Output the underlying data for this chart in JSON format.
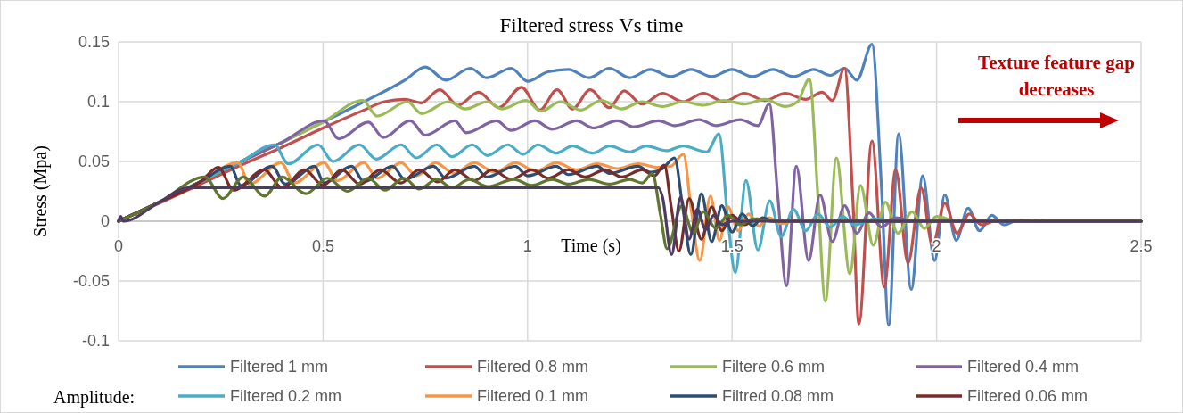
{
  "chart_data": {
    "type": "line",
    "title": "Filtered stress Vs time",
    "xlabel": "Time (s)",
    "ylabel": "Stress (Mpa)",
    "legend_title": "Amplitude:",
    "annotations": [
      "Texture feature gap decreases"
    ],
    "xlim": [
      0,
      2.5
    ],
    "xticks": [
      0,
      0.5,
      1,
      1.5,
      2,
      2.5
    ],
    "ylim": [
      -0.1,
      0.15
    ],
    "yticks": [
      -0.1,
      -0.05,
      0,
      0.05,
      0.1,
      0.15
    ],
    "grid": true,
    "legend": "bottom",
    "series": [
      {
        "name": "Filtered 1 mm",
        "color": "#4f81bd",
        "x": [
          0,
          0.1,
          0.2,
          0.3,
          0.4,
          0.5,
          0.6,
          0.7,
          0.75,
          0.8,
          0.86,
          0.9,
          0.96,
          1.0,
          1.05,
          1.1,
          1.15,
          1.2,
          1.25,
          1.3,
          1.35,
          1.4,
          1.45,
          1.5,
          1.55,
          1.6,
          1.65,
          1.7,
          1.74,
          1.775,
          1.805,
          1.842,
          1.865,
          1.883,
          1.907,
          1.938,
          1.966,
          1.995,
          2.02,
          2.048,
          2.077,
          2.105,
          2.135,
          2.165,
          2.2,
          2.3,
          2.5
        ],
        "values": [
          0,
          0.016,
          0.033,
          0.05,
          0.066,
          0.083,
          0.1,
          0.118,
          0.129,
          0.118,
          0.128,
          0.12,
          0.128,
          0.117,
          0.125,
          0.127,
          0.12,
          0.128,
          0.12,
          0.127,
          0.121,
          0.127,
          0.121,
          0.127,
          0.121,
          0.127,
          0.121,
          0.127,
          0.122,
          0.128,
          0.118,
          0.148,
          0.03,
          -0.087,
          0.073,
          -0.057,
          0.038,
          -0.033,
          0.022,
          -0.016,
          0.011,
          -0.008,
          0.005,
          -0.003,
          0.001,
          0,
          0
        ]
      },
      {
        "name": "Filtered 0.8 mm",
        "color": "#c0504d",
        "x": [
          0,
          0.1,
          0.2,
          0.3,
          0.4,
          0.5,
          0.6,
          0.65,
          0.7,
          0.74,
          0.785,
          0.83,
          0.88,
          0.93,
          0.985,
          1.03,
          1.072,
          1.11,
          1.153,
          1.2,
          1.236,
          1.28,
          1.33,
          1.38,
          1.43,
          1.48,
          1.53,
          1.58,
          1.63,
          1.68,
          1.72,
          1.745,
          1.775,
          1.795,
          1.81,
          1.842,
          1.872,
          1.9,
          1.93,
          1.962,
          1.99,
          2.02,
          2.05,
          2.08,
          2.11,
          2.15,
          2.3,
          2.5
        ],
        "values": [
          0,
          0.015,
          0.031,
          0.047,
          0.062,
          0.078,
          0.093,
          0.1,
          0.102,
          0.099,
          0.11,
          0.097,
          0.108,
          0.095,
          0.112,
          0.093,
          0.11,
          0.094,
          0.11,
          0.095,
          0.109,
          0.098,
          0.107,
          0.1,
          0.107,
          0.1,
          0.107,
          0.101,
          0.107,
          0.102,
          0.108,
          0.101,
          0.128,
          0.02,
          -0.086,
          0.067,
          -0.055,
          0.043,
          -0.035,
          0.028,
          -0.02,
          0.015,
          -0.01,
          0.006,
          -0.003,
          0.001,
          0,
          0
        ]
      },
      {
        "name": "Filtere 0.6 mm",
        "color": "#9bbb59",
        "x": [
          0,
          0.1,
          0.2,
          0.3,
          0.4,
          0.5,
          0.597,
          0.632,
          0.706,
          0.741,
          0.806,
          0.848,
          0.902,
          0.937,
          0.996,
          1.033,
          1.08,
          1.13,
          1.18,
          1.23,
          1.28,
          1.33,
          1.38,
          1.43,
          1.48,
          1.53,
          1.58,
          1.63,
          1.66,
          1.689,
          1.71,
          1.728,
          1.755,
          1.788,
          1.814,
          1.845,
          1.875,
          1.905,
          1.94,
          1.97,
          2.0,
          2.05,
          2.3,
          2.5
        ],
        "values": [
          0,
          0.016,
          0.033,
          0.05,
          0.066,
          0.083,
          0.101,
          0.088,
          0.1,
          0.09,
          0.1,
          0.094,
          0.1,
          0.094,
          0.101,
          0.092,
          0.1,
          0.093,
          0.101,
          0.094,
          0.1,
          0.096,
          0.1,
          0.097,
          0.101,
          0.098,
          0.102,
          0.096,
          0.1,
          0.119,
          0.02,
          -0.067,
          0.053,
          -0.044,
          0.03,
          -0.02,
          0.016,
          -0.01,
          0.008,
          -0.006,
          0.004,
          0,
          0,
          0
        ]
      },
      {
        "name": "Filtered 0.4 mm",
        "color": "#8064a2",
        "x": [
          0,
          0.1,
          0.2,
          0.3,
          0.4,
          0.502,
          0.538,
          0.611,
          0.647,
          0.713,
          0.75,
          0.822,
          0.85,
          0.924,
          0.96,
          1.018,
          1.06,
          1.12,
          1.16,
          1.22,
          1.26,
          1.32,
          1.36,
          1.42,
          1.46,
          1.52,
          1.563,
          1.591,
          1.612,
          1.633,
          1.657,
          1.687,
          1.715,
          1.745,
          1.775,
          1.805,
          1.835,
          1.865,
          1.9,
          1.95,
          2.5
        ],
        "values": [
          0,
          0.016,
          0.033,
          0.05,
          0.066,
          0.084,
          0.069,
          0.083,
          0.07,
          0.084,
          0.072,
          0.084,
          0.074,
          0.084,
          0.076,
          0.084,
          0.077,
          0.084,
          0.078,
          0.084,
          0.079,
          0.084,
          0.08,
          0.085,
          0.08,
          0.085,
          0.08,
          0.098,
          0.02,
          -0.054,
          0.046,
          -0.033,
          0.022,
          -0.017,
          0.013,
          -0.01,
          0.007,
          -0.005,
          0.003,
          0,
          0
        ]
      },
      {
        "name": "Filtered 0.2 mm",
        "color": "#4bacc6",
        "x": [
          0,
          0.1,
          0.2,
          0.3,
          0.381,
          0.415,
          0.488,
          0.524,
          0.589,
          0.63,
          0.691,
          0.728,
          0.778,
          0.815,
          0.865,
          0.902,
          0.952,
          0.989,
          1.025,
          1.07,
          1.11,
          1.16,
          1.2,
          1.25,
          1.29,
          1.34,
          1.38,
          1.438,
          1.468,
          1.49,
          1.508,
          1.534,
          1.563,
          1.592,
          1.62,
          1.65,
          1.68,
          1.71,
          1.74,
          1.77,
          1.8,
          1.85,
          1.9,
          2.5
        ],
        "values": [
          0,
          0.016,
          0.033,
          0.05,
          0.064,
          0.048,
          0.064,
          0.05,
          0.064,
          0.052,
          0.064,
          0.053,
          0.064,
          0.054,
          0.064,
          0.055,
          0.064,
          0.056,
          0.064,
          0.057,
          0.063,
          0.057,
          0.063,
          0.058,
          0.063,
          0.059,
          0.063,
          0.058,
          0.073,
          0.0,
          -0.043,
          0.034,
          -0.024,
          0.017,
          -0.013,
          0.01,
          -0.008,
          0.006,
          -0.005,
          0.004,
          -0.003,
          0.002,
          0,
          0
        ]
      },
      {
        "name": "Filtered 0.1 mm",
        "color": "#f79646",
        "x": [
          0,
          0.1,
          0.2,
          0.292,
          0.32,
          0.397,
          0.43,
          0.502,
          0.535,
          0.6,
          0.632,
          0.691,
          0.728,
          0.775,
          0.82,
          0.87,
          0.92,
          0.97,
          1.02,
          1.07,
          1.12,
          1.17,
          1.22,
          1.27,
          1.32,
          1.35,
          1.381,
          1.4,
          1.421,
          1.447,
          1.469,
          1.49,
          1.515,
          1.54,
          1.565,
          1.59,
          1.62,
          1.65,
          2.5
        ],
        "values": [
          0,
          0.016,
          0.033,
          0.049,
          0.031,
          0.049,
          0.032,
          0.049,
          0.034,
          0.049,
          0.036,
          0.049,
          0.038,
          0.049,
          0.04,
          0.049,
          0.041,
          0.049,
          0.042,
          0.049,
          0.043,
          0.048,
          0.044,
          0.048,
          0.045,
          0.046,
          0.056,
          0.01,
          -0.033,
          0.021,
          -0.016,
          0.012,
          -0.008,
          0.006,
          -0.004,
          0.003,
          -0.002,
          0,
          0
        ]
      },
      {
        "name": "Filtred 0.08 mm",
        "color": "#2c4d75",
        "x": [
          0,
          0.1,
          0.2,
          0.273,
          0.299,
          0.375,
          0.408,
          0.48,
          0.502,
          0.57,
          0.6,
          0.67,
          0.7,
          0.77,
          0.8,
          0.87,
          0.9,
          0.97,
          1.0,
          1.07,
          1.1,
          1.17,
          1.2,
          1.27,
          1.3,
          1.33,
          1.359,
          1.38,
          1.399,
          1.425,
          1.45,
          1.475,
          1.5,
          1.525,
          1.55,
          1.575,
          1.6,
          2.5
        ],
        "values": [
          0,
          0.016,
          0.033,
          0.046,
          0.03,
          0.046,
          0.031,
          0.046,
          0.032,
          0.046,
          0.033,
          0.046,
          0.035,
          0.046,
          0.036,
          0.046,
          0.037,
          0.046,
          0.038,
          0.046,
          0.039,
          0.046,
          0.04,
          0.046,
          0.041,
          0.044,
          0.053,
          0.01,
          -0.028,
          0.023,
          -0.017,
          0.013,
          -0.009,
          0.006,
          -0.004,
          0.003,
          0,
          0
        ]
      },
      {
        "name": "Filtered 0.06 mm",
        "color": "#772c2a",
        "x": [
          0,
          0.1,
          0.2,
          0.244,
          0.281,
          0.356,
          0.4,
          0.455,
          0.5,
          0.546,
          0.59,
          0.64,
          0.69,
          0.735,
          0.78,
          0.822,
          0.87,
          0.913,
          0.96,
          1.011,
          1.05,
          1.1,
          1.14,
          1.19,
          1.23,
          1.28,
          1.31,
          1.334,
          1.352,
          1.37,
          1.395,
          1.425,
          1.45,
          1.475,
          1.5,
          1.53,
          1.56,
          1.6,
          2.5
        ],
        "values": [
          0,
          0.016,
          0.033,
          0.045,
          0.026,
          0.043,
          0.028,
          0.043,
          0.03,
          0.043,
          0.031,
          0.043,
          0.032,
          0.043,
          0.033,
          0.043,
          0.034,
          0.043,
          0.035,
          0.043,
          0.036,
          0.043,
          0.037,
          0.043,
          0.037,
          0.043,
          0.038,
          0.047,
          0.01,
          -0.025,
          0.019,
          -0.015,
          0.012,
          -0.008,
          0.005,
          -0.003,
          0.002,
          0,
          0
        ]
      },
      {
        "color": "#5f7530",
        "x": [
          0,
          0.1,
          0.211,
          0.255,
          0.305,
          0.357,
          0.4,
          0.458,
          0.51,
          0.56,
          0.61,
          0.651,
          0.698,
          0.735,
          0.778,
          0.815,
          0.858,
          0.902,
          0.967,
          1.01,
          1.06,
          1.1,
          1.15,
          1.2,
          1.25,
          1.28,
          1.305,
          1.325,
          1.341,
          1.377,
          1.405,
          1.43,
          1.46,
          1.49,
          1.52,
          1.55,
          1.6,
          2.5
        ],
        "values": [
          0,
          0.016,
          0.037,
          0.019,
          0.037,
          0.021,
          0.037,
          0.023,
          0.036,
          0.025,
          0.036,
          0.026,
          0.036,
          0.027,
          0.035,
          0.028,
          0.035,
          0.029,
          0.035,
          0.03,
          0.035,
          0.031,
          0.035,
          0.031,
          0.035,
          0.032,
          0.04,
          0.005,
          -0.023,
          0.013,
          -0.01,
          0.008,
          -0.006,
          0.005,
          -0.003,
          0.002,
          0,
          0
        ]
      },
      {
        "color": "#4d3b62",
        "x": [
          0,
          0.005,
          0.012,
          0.1,
          0.17,
          1.32,
          1.33,
          1.352,
          1.374,
          1.395,
          1.415,
          1.435,
          1.455,
          1.475,
          1.5,
          2.5
        ],
        "values": [
          0,
          0.004,
          0,
          0.016,
          0.028,
          0.028,
          0.02,
          -0.028,
          0.02,
          -0.015,
          0.01,
          -0.007,
          0.005,
          -0.003,
          0,
          0
        ]
      }
    ]
  }
}
